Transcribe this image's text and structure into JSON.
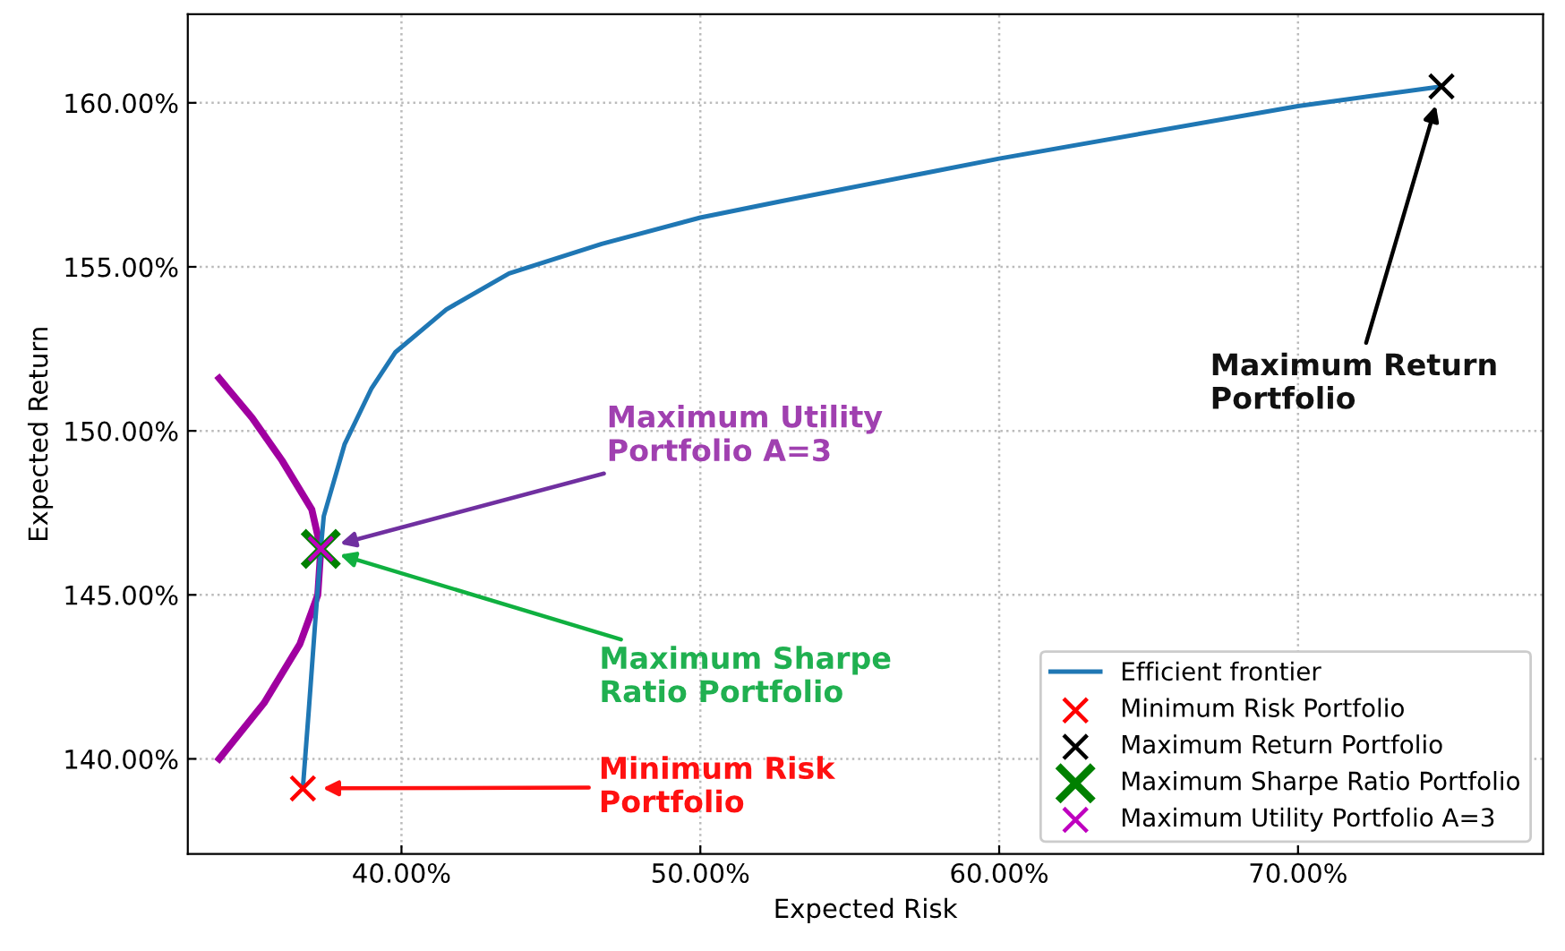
{
  "chart_data": {
    "type": "line",
    "xlabel": "Expected Risk",
    "ylabel": "Expected Return",
    "xlim": [
      32.85,
      78.2
    ],
    "ylim": [
      137.1,
      162.7
    ],
    "xticks": [
      {
        "value": 40,
        "label": "40.00%"
      },
      {
        "value": 50,
        "label": "50.00%"
      },
      {
        "value": 60,
        "label": "60.00%"
      },
      {
        "value": 70,
        "label": "70.00%"
      }
    ],
    "yticks": [
      {
        "value": 140,
        "label": "140.00%"
      },
      {
        "value": 145,
        "label": "145.00%"
      },
      {
        "value": 150,
        "label": "150.00%"
      },
      {
        "value": 155,
        "label": "155.00%"
      },
      {
        "value": 160,
        "label": "160.00%"
      }
    ],
    "grid": true,
    "legend": "bottom right",
    "series": [
      {
        "name": "Efficient frontier",
        "color": "#1f77b4",
        "line_style": "solid",
        "x": [
          36.7,
          36.9,
          37.1,
          37.3,
          37.4,
          38.1,
          39.0,
          39.8,
          41.5,
          43.6,
          46.7,
          50.0,
          52.7,
          60.0,
          70.0,
          74.8
        ],
        "values": [
          139.1,
          141.5,
          144.0,
          146.4,
          147.4,
          149.6,
          151.3,
          152.4,
          153.7,
          154.8,
          155.7,
          156.5,
          157.0,
          158.3,
          159.9,
          160.5
        ]
      },
      {
        "color": "#a000a0",
        "line_style": "solid",
        "x": [
          33.9,
          35.4,
          36.6,
          37.2,
          37.3,
          37.0,
          36.0,
          35.0,
          33.9
        ],
        "values": [
          140.0,
          141.7,
          143.5,
          145.0,
          146.4,
          147.6,
          149.1,
          150.4,
          151.6
        ]
      },
      {
        "name": "Minimum Risk Portfolio",
        "type": "scatter",
        "marker": "cross",
        "color": "#ff0000",
        "x": [
          36.7
        ],
        "values": [
          139.1
        ]
      },
      {
        "name": "Maximum Return Portfolio",
        "type": "scatter",
        "marker": "cross",
        "color": "#000000",
        "x": [
          74.8
        ],
        "values": [
          160.5
        ]
      },
      {
        "name": "Maximum Sharpe Ratio Portfolio",
        "type": "scatter",
        "marker": "cross",
        "color": "#008000",
        "x": [
          37.3
        ],
        "values": [
          146.4
        ]
      },
      {
        "name": "Maximum Utility Portfolio A=3",
        "type": "scatter",
        "marker": "cross",
        "color": "#bf00bf",
        "x": [
          37.3
        ],
        "values": [
          146.4
        ]
      }
    ],
    "annotations": [
      "Maximum Return\nPortfolio",
      "Maximum Utility\nPortfolio A=3",
      "Maximum Sharpe\nRatio Portfolio",
      "Minimum Risk\nPortfolio"
    ]
  }
}
